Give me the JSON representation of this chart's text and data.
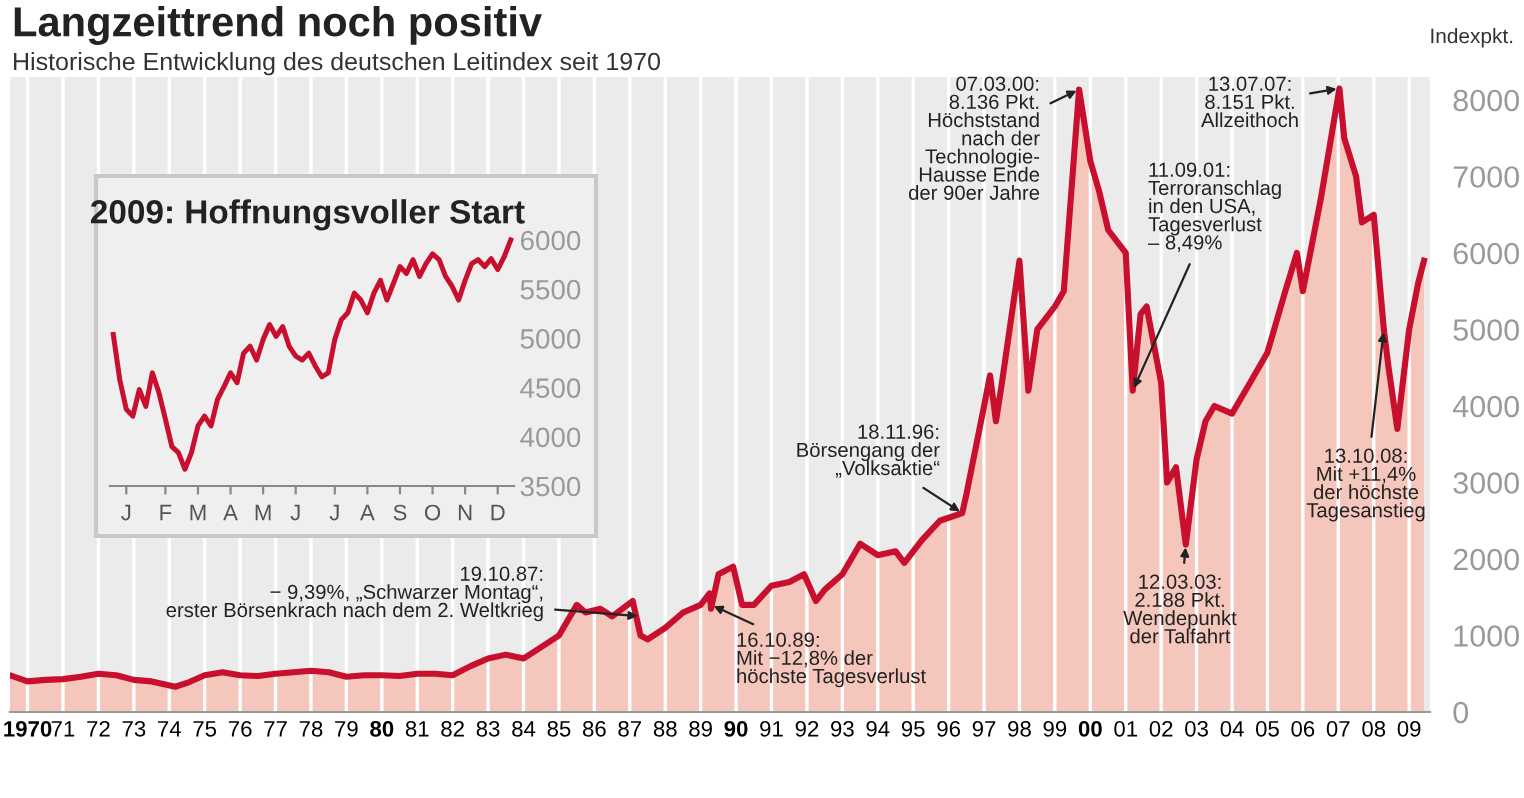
{
  "chart_data": [
    {
      "type": "area",
      "title": "Langzeittrend noch positiv",
      "subtitle": "Historische Entwicklung des deutschen Leitindex seit 1970",
      "ylabel": "Indexpkt.",
      "x": [
        "1970-01",
        "1970-07",
        "1971-01",
        "1971-07",
        "1972-01",
        "1972-07",
        "1973-01",
        "1973-07",
        "1974-01",
        "1974-09",
        "1975-01",
        "1975-07",
        "1976-01",
        "1976-07",
        "1977-01",
        "1977-07",
        "1978-01",
        "1978-07",
        "1979-01",
        "1979-07",
        "1980-01",
        "1980-07",
        "1981-01",
        "1981-07",
        "1982-01",
        "1982-07",
        "1983-01",
        "1983-07",
        "1984-01",
        "1984-07",
        "1985-01",
        "1985-07",
        "1986-01",
        "1986-04",
        "1986-09",
        "1987-01",
        "1987-08",
        "1987-10-20",
        "1988-01",
        "1988-07",
        "1989-01",
        "1989-07",
        "1989-10-01",
        "1989-10-16",
        "1990-01",
        "1990-06",
        "1990-09",
        "1991-01",
        "1991-07",
        "1992-01",
        "1992-06",
        "1992-10",
        "1993-01",
        "1993-07",
        "1994-01",
        "1994-07",
        "1995-01",
        "1995-04",
        "1995-10",
        "1996-04",
        "1996-11-18",
        "1997-01",
        "1997-07",
        "1997-09",
        "1997-11",
        "1998-01",
        "1998-07",
        "1998-10",
        "1999-01",
        "1999-07",
        "1999-10",
        "2000-03-07",
        "2000-07",
        "2000-10",
        "2001-01",
        "2001-07",
        "2001-09-11",
        "2001-12",
        "2002-02",
        "2002-07",
        "2002-09",
        "2002-12",
        "2003-03-12",
        "2003-07",
        "2003-10",
        "2004-01",
        "2004-07",
        "2005-01",
        "2005-07",
        "2006-01",
        "2006-05",
        "2006-07",
        "2007-01",
        "2007-07-13",
        "2007-09",
        "2008-01",
        "2008-03",
        "2008-07",
        "2008-10-13",
        "2008-12",
        "2009-03",
        "2009-07",
        "2009-10",
        "2009-12"
      ],
      "series": [
        {
          "color": "#c8102e",
          "values": [
            480,
            400,
            420,
            430,
            460,
            500,
            480,
            420,
            400,
            330,
            380,
            480,
            520,
            480,
            470,
            500,
            520,
            540,
            520,
            460,
            480,
            480,
            470,
            500,
            500,
            480,
            600,
            700,
            750,
            700,
            850,
            1000,
            1400,
            1300,
            1350,
            1250,
            1450,
            1000,
            950,
            1100,
            1300,
            1400,
            1550,
            1350,
            1800,
            1900,
            1400,
            1400,
            1650,
            1700,
            1800,
            1450,
            1600,
            1800,
            2200,
            2050,
            2100,
            1950,
            2250,
            2500,
            2600,
            2850,
            4000,
            4400,
            3800,
            4300,
            5900,
            4200,
            5000,
            5300,
            5500,
            8136,
            7200,
            6800,
            6300,
            6000,
            4200,
            5200,
            5300,
            4300,
            3000,
            3200,
            2188,
            3300,
            3800,
            4000,
            3900,
            4300,
            4700,
            5500,
            6000,
            5500,
            6700,
            8151,
            7500,
            7000,
            6400,
            6500,
            5000,
            4500,
            3700,
            5000,
            5600,
            5900
          ]
        }
      ],
      "xlim": [
        "1970-01",
        "2010-02"
      ],
      "ylim": [
        0,
        8300
      ],
      "xticks": [
        {
          "value": "1970-07",
          "label": "1970"
        },
        {
          "value": "1971-07",
          "label": "71"
        },
        {
          "value": "1972-07",
          "label": "72"
        },
        {
          "value": "1973-07",
          "label": "73"
        },
        {
          "value": "1974-07",
          "label": "74"
        },
        {
          "value": "1975-07",
          "label": "75"
        },
        {
          "value": "1976-07",
          "label": "76"
        },
        {
          "value": "1977-07",
          "label": "77"
        },
        {
          "value": "1978-07",
          "label": "78"
        },
        {
          "value": "1979-07",
          "label": "79"
        },
        {
          "value": "1980-07",
          "label": "80"
        },
        {
          "value": "1981-07",
          "label": "81"
        },
        {
          "value": "1982-07",
          "label": "82"
        },
        {
          "value": "1983-07",
          "label": "83"
        },
        {
          "value": "1984-07",
          "label": "84"
        },
        {
          "value": "1985-07",
          "label": "85"
        },
        {
          "value": "1986-07",
          "label": "86"
        },
        {
          "value": "1987-07",
          "label": "87"
        },
        {
          "value": "1988-07",
          "label": "88"
        },
        {
          "value": "1989-07",
          "label": "89"
        },
        {
          "value": "1990-07",
          "label": "90"
        },
        {
          "value": "1991-07",
          "label": "91"
        },
        {
          "value": "1992-07",
          "label": "92"
        },
        {
          "value": "1993-07",
          "label": "93"
        },
        {
          "value": "1994-07",
          "label": "94"
        },
        {
          "value": "1995-07",
          "label": "95"
        },
        {
          "value": "1996-07",
          "label": "96"
        },
        {
          "value": "1997-07",
          "label": "97"
        },
        {
          "value": "1998-07",
          "label": "98"
        },
        {
          "value": "1999-07",
          "label": "99"
        },
        {
          "value": "2000-07",
          "label": "00"
        },
        {
          "value": "2001-07",
          "label": "01"
        },
        {
          "value": "2002-07",
          "label": "02"
        },
        {
          "value": "2003-07",
          "label": "03"
        },
        {
          "value": "2004-07",
          "label": "04"
        },
        {
          "value": "2005-07",
          "label": "05"
        },
        {
          "value": "2006-07",
          "label": "06"
        },
        {
          "value": "2007-07",
          "label": "07"
        },
        {
          "value": "2008-07",
          "label": "08"
        },
        {
          "value": "2009-07",
          "label": "09"
        }
      ],
      "yticks": [
        0,
        1000,
        2000,
        3000,
        4000,
        5000,
        6000,
        7000,
        8000
      ],
      "grid": "x",
      "annotations": [
        {
          "text": "19.10.87:\n− 9,39%, „Schwarzer Montag“,\nerster Börsenkrach nach dem 2. Weltkrieg",
          "x": "1987-10-19",
          "y": 1250
        },
        {
          "text": "16.10.89:\nMit −12,8% der\nhöchste Tagesverlust",
          "x": "1989-10-16",
          "y": 1400
        },
        {
          "text": "18.11.96:\nBörsengang der\n„Volksaktie“",
          "x": "1996-11-18",
          "y": 2600
        },
        {
          "text": "07.03.00:\n8.136 Pkt.\nHöchststand\nnach der\nTechnologie-\nHausse Ende\nder 90er Jahre",
          "x": "2000-03-07",
          "y": 8136
        },
        {
          "text": "11.09.01:\nTerroranschlag\nin den USA,\nTagesverlust\n– 8,49%",
          "x": "2001-09-11",
          "y": 4200
        },
        {
          "text": "12.03.03:\n2.188 Pkt.\nWendepunkt\nder Talfahrt",
          "x": "2003-03-12",
          "y": 2188
        },
        {
          "text": "13.07.07:\n8.151 Pkt.\nAllzeithoch",
          "x": "2007-07-13",
          "y": 8151
        },
        {
          "text": "13.10.08:\nMit +11,4%\nder höchste\nTagesanstieg",
          "x": "2008-10-13",
          "y": 5000
        }
      ]
    },
    {
      "type": "line",
      "title": "2009: Hoffnungsvoller Start",
      "categories": [
        null,
        null,
        "J",
        null,
        null,
        null,
        null,
        null,
        "F",
        null,
        null,
        null,
        null,
        "M",
        null,
        null,
        null,
        null,
        "A",
        null,
        null,
        null,
        null,
        "M",
        null,
        null,
        null,
        null,
        "J",
        null,
        null,
        null,
        null,
        null,
        "J",
        null,
        null,
        null,
        null,
        "A",
        null,
        null,
        null,
        null,
        "S",
        null,
        null,
        null,
        null,
        "O",
        null,
        null,
        null,
        null,
        "N",
        null,
        null,
        null,
        null,
        "D",
        null,
        null
      ],
      "series": [
        {
          "color": "#c8102e",
          "values": [
            5040,
            4580,
            4280,
            4210,
            4480,
            4310,
            4650,
            4450,
            4180,
            3900,
            3840,
            3670,
            3840,
            4110,
            4210,
            4110,
            4380,
            4510,
            4650,
            4550,
            4850,
            4920,
            4780,
            4990,
            5140,
            5020,
            5120,
            4920,
            4820,
            4780,
            4850,
            4720,
            4610,
            4650,
            4990,
            5190,
            5260,
            5460,
            5390,
            5260,
            5460,
            5590,
            5390,
            5560,
            5730,
            5660,
            5800,
            5630,
            5760,
            5860,
            5800,
            5630,
            5530,
            5390,
            5590,
            5760,
            5800,
            5730,
            5810,
            5700,
            5830,
            6000
          ]
        }
      ],
      "ylim": [
        3500,
        6000
      ],
      "yticks": [
        3500,
        4000,
        4500,
        5000,
        5500,
        6000
      ]
    }
  ]
}
